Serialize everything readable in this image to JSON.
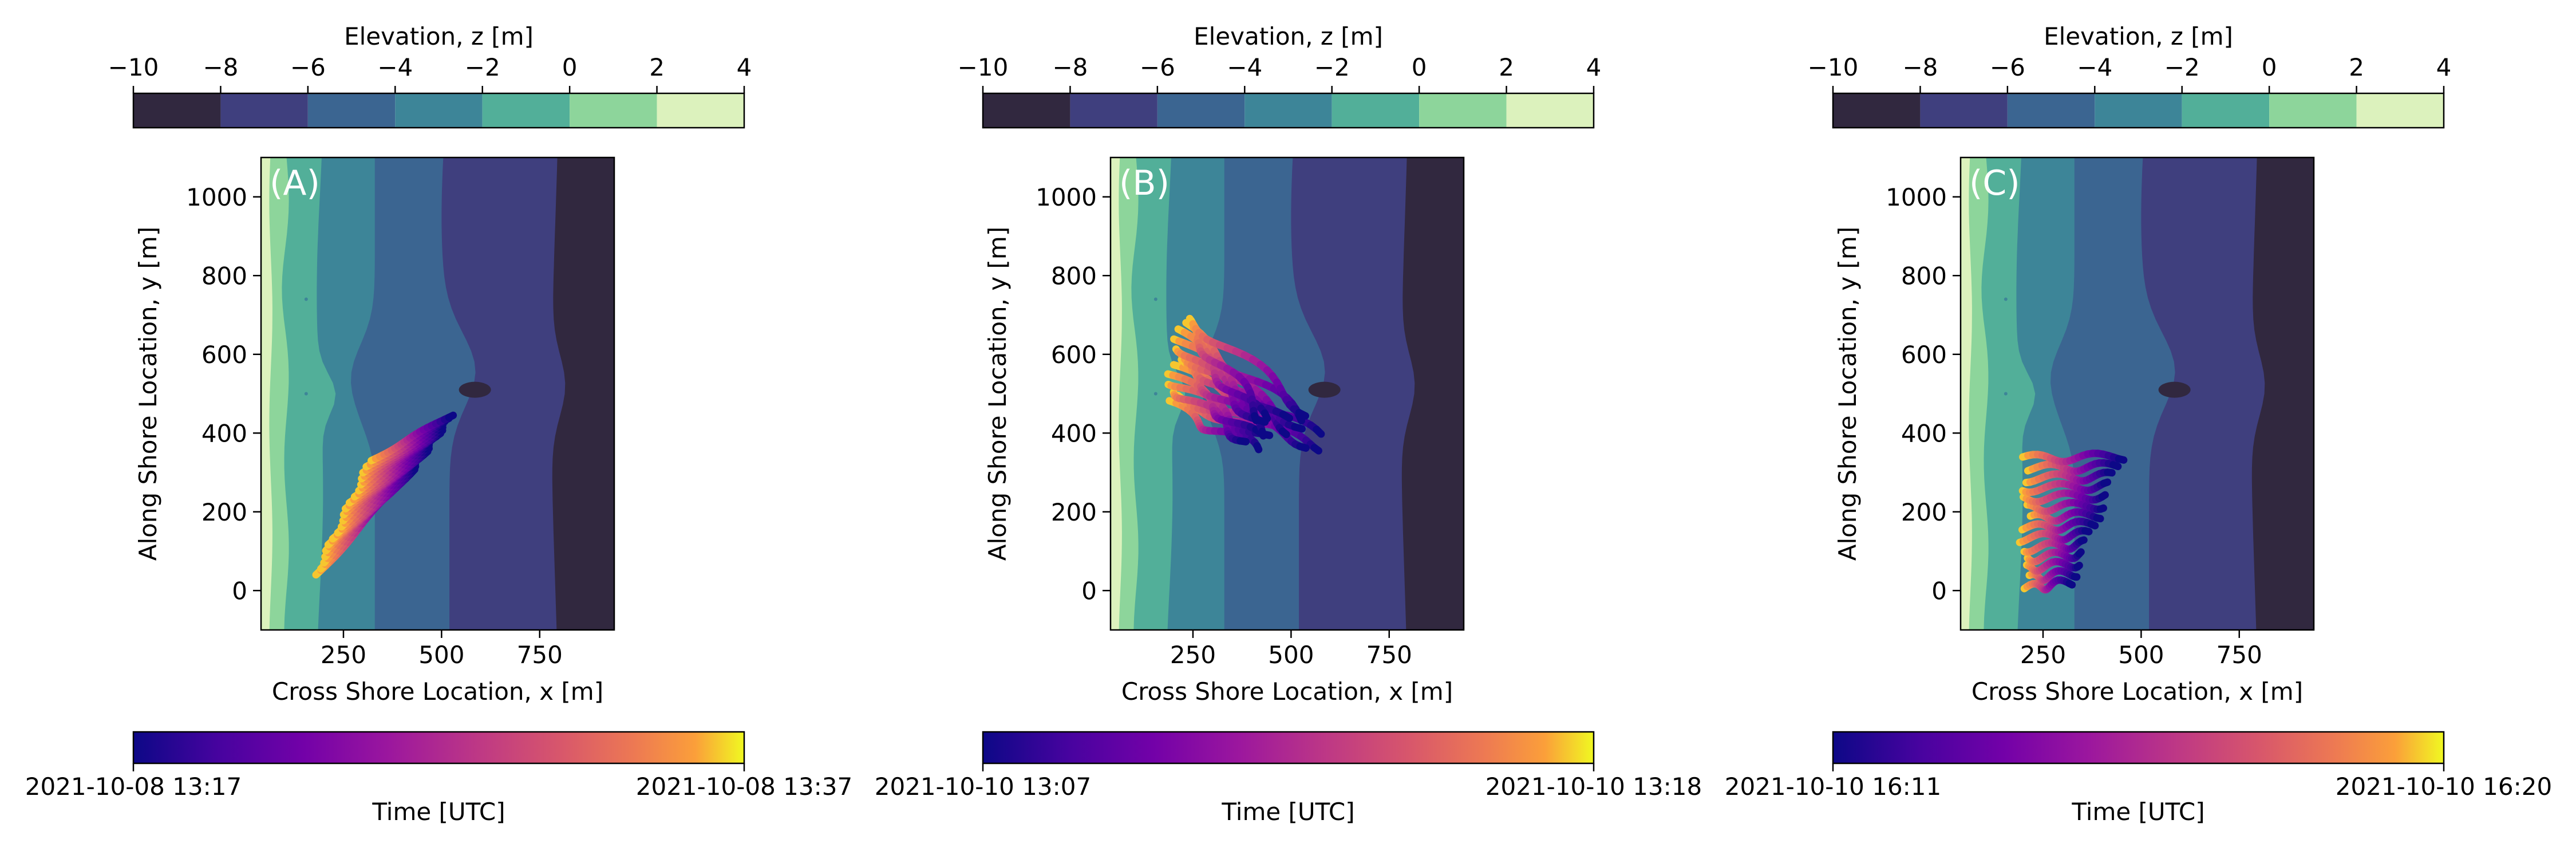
{
  "chart_data": [
    {
      "type": "contour",
      "panel_label": "(A)",
      "xlabel": "Cross Shore Location, x [m]",
      "ylabel": "Along Shore Location, y [m]",
      "xlim": [
        40,
        940
      ],
      "ylim": [
        -100,
        1100
      ],
      "xticks": [
        250,
        500,
        750
      ],
      "yticks": [
        0,
        200,
        400,
        600,
        800,
        1000
      ],
      "elevation_colorbar": {
        "label": "Elevation, z [m]",
        "ticks": [
          -10,
          -8,
          -6,
          -4,
          -2,
          0,
          2,
          4
        ],
        "levels": [
          {
            "range": [
              -10,
              -8
            ],
            "color": "#31283f"
          },
          {
            "range": [
              -8,
              -6
            ],
            "color": "#3f3f7e"
          },
          {
            "range": [
              -6,
              -4
            ],
            "color": "#3b6591"
          },
          {
            "range": [
              -4,
              -2
            ],
            "color": "#3d8598"
          },
          {
            "range": [
              -2,
              0
            ],
            "color": "#52af99"
          },
          {
            "range": [
              0,
              2
            ],
            "color": "#8dd59b"
          },
          {
            "range": [
              2,
              4
            ],
            "color": "#dcf2bd"
          }
        ]
      },
      "time_colorbar": {
        "label": "Time [UTC]",
        "start": "2021-10-08 13:17",
        "end": "2021-10-08 13:37",
        "colormap": "plasma"
      },
      "trajectories": {
        "pattern": "diagonal",
        "count": 20,
        "start_x": [
          180,
          320
        ],
        "start_y": [
          40,
          330
        ],
        "end_x": [
          420,
          525
        ],
        "end_y": [
          300,
          445
        ]
      }
    },
    {
      "type": "contour",
      "panel_label": "(B)",
      "xlabel": "Cross Shore Location, x [m]",
      "ylabel": "Along Shore Location, y [m]",
      "xlim": [
        40,
        940
      ],
      "ylim": [
        -100,
        1100
      ],
      "xticks": [
        250,
        500,
        750
      ],
      "yticks": [
        0,
        200,
        400,
        600,
        800,
        1000
      ],
      "elevation_colorbar": {
        "label": "Elevation, z [m]",
        "ticks": [
          -10,
          -8,
          -6,
          -4,
          -2,
          0,
          2,
          4
        ],
        "levels": [
          {
            "range": [
              -10,
              -8
            ],
            "color": "#31283f"
          },
          {
            "range": [
              -8,
              -6
            ],
            "color": "#3f3f7e"
          },
          {
            "range": [
              -6,
              -4
            ],
            "color": "#3b6591"
          },
          {
            "range": [
              -4,
              -2
            ],
            "color": "#3d8598"
          },
          {
            "range": [
              -2,
              0
            ],
            "color": "#52af99"
          },
          {
            "range": [
              0,
              2
            ],
            "color": "#8dd59b"
          },
          {
            "range": [
              2,
              4
            ],
            "color": "#dcf2bd"
          }
        ]
      },
      "time_colorbar": {
        "label": "Time [UTC]",
        "start": "2021-10-10 13:07",
        "end": "2021-10-10 13:18",
        "colormap": "plasma"
      },
      "trajectories": {
        "pattern": "fan",
        "count": 16,
        "start_x": [
          190,
          230
        ],
        "start_y": [
          470,
          700
        ],
        "end_x": [
          380,
          620
        ],
        "end_y": [
          360,
          450
        ]
      }
    },
    {
      "type": "contour",
      "panel_label": "(C)",
      "xlabel": "Cross Shore Location, x [m]",
      "ylabel": "Along Shore Location, y [m]",
      "xlim": [
        40,
        940
      ],
      "ylim": [
        -100,
        1100
      ],
      "xticks": [
        250,
        500,
        750
      ],
      "yticks": [
        0,
        200,
        400,
        600,
        800,
        1000
      ],
      "elevation_colorbar": {
        "label": "Elevation, z [m]",
        "ticks": [
          -10,
          -8,
          -6,
          -4,
          -2,
          0,
          2,
          4
        ],
        "levels": [
          {
            "range": [
              -10,
              -8
            ],
            "color": "#31283f"
          },
          {
            "range": [
              -8,
              -6
            ],
            "color": "#3f3f7e"
          },
          {
            "range": [
              -6,
              -4
            ],
            "color": "#3b6591"
          },
          {
            "range": [
              -4,
              -2
            ],
            "color": "#3d8598"
          },
          {
            "range": [
              -2,
              0
            ],
            "color": "#52af99"
          },
          {
            "range": [
              0,
              2
            ],
            "color": "#8dd59b"
          },
          {
            "range": [
              2,
              4
            ],
            "color": "#dcf2bd"
          }
        ]
      },
      "time_colorbar": {
        "label": "Time [UTC]",
        "start": "2021-10-10 16:11",
        "end": "2021-10-10 16:20",
        "colormap": "plasma"
      },
      "trajectories": {
        "pattern": "comb",
        "count": 14,
        "start_x": [
          195,
          215
        ],
        "start_y": [
          5,
          335
        ],
        "end_x": [
          320,
          450
        ],
        "end_y": [
          20,
          340
        ]
      }
    }
  ]
}
